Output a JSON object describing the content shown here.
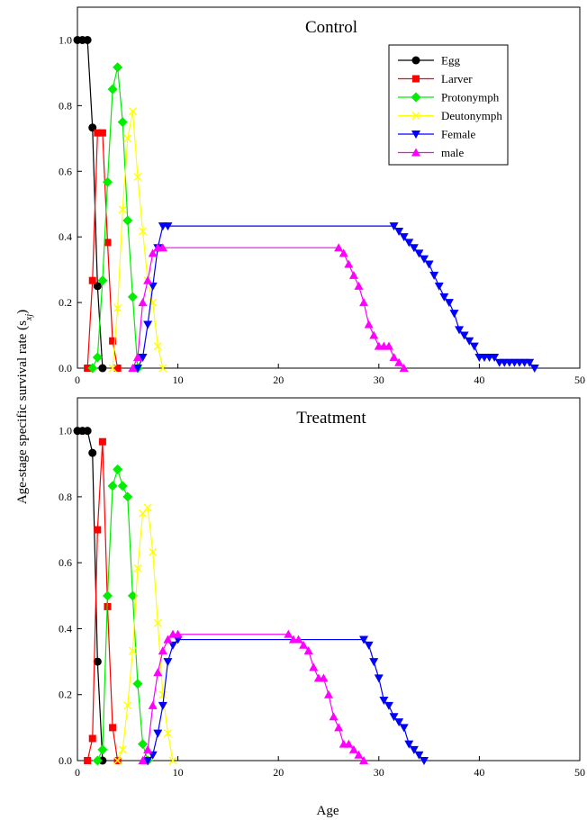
{
  "chart_data": {
    "type": "line",
    "xlabel": "Age",
    "ylabel": "Age-stage specific survival rate (s",
    "ylabel_sub": "xj",
    "ylabel_close": ")",
    "legend_position": "top-right",
    "legend_panel": 0,
    "series_styles": [
      {
        "name": "Egg",
        "color": "#000000",
        "marker": "circle"
      },
      {
        "name": "Larver",
        "color": "#ff0000",
        "marker": "square"
      },
      {
        "name": "Protonymph",
        "color": "#00ee00",
        "marker": "diamond"
      },
      {
        "name": "Deutonymph",
        "color": "#ffff00",
        "marker": "x"
      },
      {
        "name": "Female",
        "color": "#0000ff",
        "marker": "triangle-down"
      },
      {
        "name": "male",
        "color": "#ff00ff",
        "marker": "triangle-up"
      }
    ],
    "panels": [
      {
        "title": "Control",
        "xlim": [
          0,
          50
        ],
        "ylim": [
          0,
          1.1
        ],
        "xticks": [
          "0",
          "10",
          "20",
          "30",
          "40",
          "50"
        ],
        "yticks": [
          "0.0",
          "0.2",
          "0.4",
          "0.6",
          "0.8",
          "1.0"
        ],
        "series": [
          {
            "name": "Egg",
            "x": [
              0,
              0.5,
              1,
              1.5,
              2,
              2.5
            ],
            "y": [
              1.0,
              1.0,
              1.0,
              0.733,
              0.25,
              0.0
            ]
          },
          {
            "name": "Larver",
            "x": [
              1,
              1.5,
              2,
              2.5,
              3,
              3.5,
              4
            ],
            "y": [
              0.0,
              0.267,
              0.717,
              0.717,
              0.383,
              0.083,
              0.0
            ]
          },
          {
            "name": "Protonymph",
            "x": [
              1.5,
              2,
              2.5,
              3,
              3.5,
              4,
              4.5,
              5,
              5.5,
              6
            ],
            "y": [
              0.0,
              0.033,
              0.267,
              0.567,
              0.85,
              0.917,
              0.75,
              0.45,
              0.217,
              0.0
            ]
          },
          {
            "name": "Deutonymph",
            "x": [
              3.5,
              4,
              4.5,
              5,
              5.5,
              6,
              6.5,
              7,
              7.5,
              8,
              8.5
            ],
            "y": [
              0.0,
              0.183,
              0.483,
              0.7,
              0.783,
              0.583,
              0.417,
              0.267,
              0.2,
              0.067,
              0.0
            ]
          },
          {
            "name": "Female",
            "x": [
              6,
              6.5,
              7,
              7.5,
              8,
              8.5,
              9,
              31.5,
              32,
              32.5,
              33,
              33.5,
              34,
              34.5,
              35,
              35.5,
              36,
              36.5,
              37,
              37.5,
              38,
              38.5,
              39,
              39.5,
              40,
              40.5,
              41,
              41.5,
              42,
              42.5,
              43,
              43.5,
              44,
              44.5,
              45,
              45.5
            ],
            "y": [
              0.0,
              0.033,
              0.133,
              0.25,
              0.367,
              0.433,
              0.433,
              0.433,
              0.417,
              0.4,
              0.383,
              0.367,
              0.35,
              0.333,
              0.317,
              0.283,
              0.25,
              0.217,
              0.2,
              0.167,
              0.117,
              0.1,
              0.083,
              0.067,
              0.033,
              0.033,
              0.033,
              0.033,
              0.017,
              0.017,
              0.017,
              0.017,
              0.017,
              0.017,
              0.017,
              0.0
            ]
          },
          {
            "name": "male",
            "x": [
              5.5,
              6,
              6.5,
              7,
              7.5,
              8,
              8.5,
              26,
              26.5,
              27,
              27.5,
              28,
              28.5,
              29,
              29.5,
              30,
              30.5,
              31,
              31.5,
              32,
              32.5
            ],
            "y": [
              0.0,
              0.033,
              0.2,
              0.267,
              0.35,
              0.367,
              0.367,
              0.367,
              0.35,
              0.317,
              0.283,
              0.25,
              0.2,
              0.133,
              0.1,
              0.067,
              0.067,
              0.067,
              0.033,
              0.017,
              0.0
            ]
          }
        ]
      },
      {
        "title": "Treatment",
        "xlim": [
          0,
          50
        ],
        "ylim": [
          0,
          1.1
        ],
        "xticks": [
          "0",
          "10",
          "20",
          "30",
          "40",
          "50"
        ],
        "yticks": [
          "0.0",
          "0.2",
          "0.4",
          "0.6",
          "0.8",
          "1.0"
        ],
        "series": [
          {
            "name": "Egg",
            "x": [
              0,
              0.5,
              1,
              1.5,
              2,
              2.5
            ],
            "y": [
              1.0,
              1.0,
              1.0,
              0.933,
              0.3,
              0.0
            ]
          },
          {
            "name": "Larver",
            "x": [
              1,
              1.5,
              2,
              2.5,
              3,
              3.5,
              4
            ],
            "y": [
              0.0,
              0.067,
              0.7,
              0.967,
              0.467,
              0.1,
              0.0
            ]
          },
          {
            "name": "Protonymph",
            "x": [
              2,
              2.5,
              3,
              3.5,
              4,
              4.5,
              5,
              5.5,
              6,
              6.5,
              7
            ],
            "y": [
              0.0,
              0.033,
              0.5,
              0.833,
              0.883,
              0.833,
              0.8,
              0.5,
              0.233,
              0.05,
              0.0
            ]
          },
          {
            "name": "Deutonymph",
            "x": [
              4,
              4.5,
              5,
              5.5,
              6,
              6.5,
              7,
              7.5,
              8,
              8.5,
              9,
              9.5
            ],
            "y": [
              0.0,
              0.033,
              0.167,
              0.333,
              0.583,
              0.75,
              0.767,
              0.633,
              0.417,
              0.2,
              0.083,
              0.0
            ]
          },
          {
            "name": "Female",
            "x": [
              7,
              7.5,
              8,
              8.5,
              9,
              9.5,
              10,
              28.5,
              29,
              29.5,
              30,
              30.5,
              31,
              31.5,
              32,
              32.5,
              33,
              33.5,
              34,
              34.5
            ],
            "y": [
              0.0,
              0.017,
              0.083,
              0.167,
              0.3,
              0.35,
              0.367,
              0.367,
              0.35,
              0.3,
              0.25,
              0.183,
              0.167,
              0.133,
              0.117,
              0.1,
              0.05,
              0.033,
              0.017,
              0.0
            ]
          },
          {
            "name": "male",
            "x": [
              6.5,
              7,
              7.5,
              8,
              8.5,
              9,
              9.5,
              10,
              21,
              21.5,
              22,
              22.5,
              23,
              23.5,
              24,
              24.5,
              25,
              25.5,
              26,
              26.5,
              27,
              27.5,
              28,
              28.5
            ],
            "y": [
              0.0,
              0.033,
              0.167,
              0.267,
              0.333,
              0.367,
              0.383,
              0.383,
              0.383,
              0.367,
              0.367,
              0.35,
              0.333,
              0.283,
              0.25,
              0.25,
              0.2,
              0.133,
              0.1,
              0.05,
              0.05,
              0.033,
              0.017,
              0.0
            ]
          }
        ]
      }
    ]
  }
}
